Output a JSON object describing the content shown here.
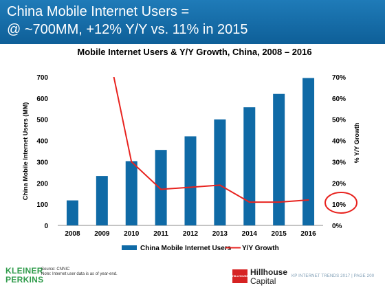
{
  "header": {
    "line1": "China Mobile Internet Users =",
    "line2": "@ ~700MM, +12% Y/Y vs. 11% in 2015"
  },
  "chart_data": {
    "type": "bar",
    "title": "Mobile Internet Users & Y/Y Growth, China, 2008 – 2016",
    "categories": [
      "2008",
      "2009",
      "2010",
      "2011",
      "2012",
      "2013",
      "2014",
      "2015",
      "2016"
    ],
    "ylabel": "China Mobile Internet Users (MM)",
    "y2label": "% Y/Y Growth",
    "ylim": [
      0,
      700
    ],
    "y2lim": [
      0,
      0.7
    ],
    "yticks": [
      "0",
      "100",
      "200",
      "300",
      "400",
      "500",
      "600",
      "700"
    ],
    "y2ticks": [
      "0%",
      "10%",
      "20%",
      "30%",
      "40%",
      "50%",
      "60%",
      "70%"
    ],
    "series": [
      {
        "name": "China Mobile Internet Users",
        "kind": "bar",
        "color": "#0f6aa6",
        "values": [
          118,
          233,
          303,
          356,
          420,
          500,
          557,
          620,
          695
        ]
      },
      {
        "name": "Y/Y Growth",
        "kind": "line",
        "axis": "secondary",
        "color": "#e8231f",
        "values": [
          null,
          0.97,
          0.3,
          0.17,
          0.18,
          0.19,
          0.11,
          0.11,
          0.12
        ]
      }
    ],
    "annotation": {
      "shape": "circle",
      "color": "#e8231f",
      "target": "y2 value 12%"
    },
    "legend": "bottom",
    "grid": false
  },
  "footer": {
    "logo_line1": "KLEINER",
    "logo_line2": "PERKINS",
    "source_line1": "Source: CNNIC",
    "source_line2": "Note: Internet user data is as of year-end.",
    "hillhouse_box": "HILLHOUSE",
    "hillhouse_name": "Hillhouse",
    "hillhouse_sub": "Capital",
    "right_text": "KP INTERNET TRENDS 2017  |  PAGE 200"
  }
}
